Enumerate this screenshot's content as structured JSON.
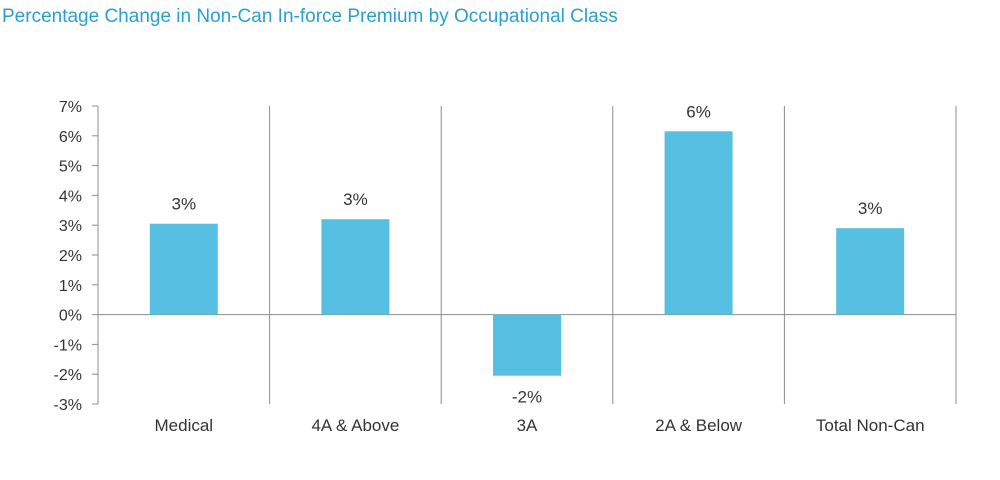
{
  "chart_data": {
    "type": "bar",
    "title": "Percentage Change in Non-Can In-force Premium by Occupational Class",
    "categories": [
      "Medical",
      "4A & Above",
      "3A",
      "2A & Below",
      "Total Non-Can"
    ],
    "values": [
      3.05,
      3.2,
      -2.05,
      6.15,
      2.9
    ],
    "data_labels": [
      "3%",
      "3%",
      "-2%",
      "6%",
      "3%"
    ],
    "yticks": [
      7,
      6,
      5,
      4,
      3,
      2,
      1,
      0,
      -1,
      -2,
      -3
    ],
    "ytick_labels": [
      "7%",
      "6%",
      "5%",
      "4%",
      "3%",
      "2%",
      "1%",
      "0%",
      "-1%",
      "-2%",
      "-3%"
    ],
    "ylim": [
      -3,
      7
    ],
    "xlabel": "",
    "ylabel": "",
    "grid": false,
    "legend": "none",
    "colors": {
      "bar": "#56bfe2",
      "title": "#2aa0cf",
      "axis": "#8c8c8c",
      "text": "#333333"
    }
  }
}
